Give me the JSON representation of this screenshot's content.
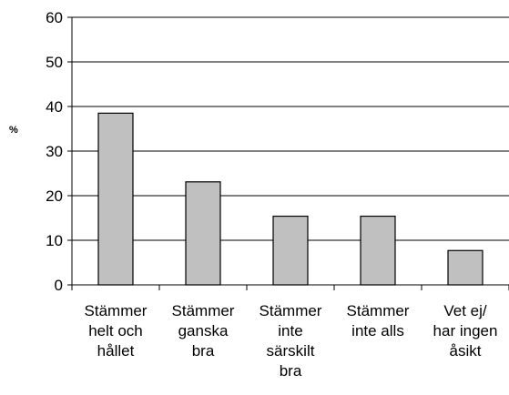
{
  "chart_data": {
    "type": "bar",
    "ylabel": "%",
    "xlabel": "",
    "ylim": [
      0,
      60
    ],
    "yticks": [
      0,
      10,
      20,
      30,
      40,
      50,
      60
    ],
    "grid": true,
    "categories": [
      [
        "Stämmer",
        "helt och",
        "hållet"
      ],
      [
        "Stämmer",
        "ganska",
        "bra"
      ],
      [
        "Stämmer",
        "inte",
        "särskilt",
        "bra"
      ],
      [
        "Stämmer",
        "inte alls"
      ],
      [
        "Vet ej/",
        "har ingen",
        "åsikt"
      ]
    ],
    "values": [
      38.5,
      23.1,
      15.4,
      15.4,
      7.7
    ],
    "colors": {
      "bar_fill": "#c0c0c0",
      "bar_stroke": "#000000",
      "grid": "#000000",
      "axis": "#000000"
    }
  }
}
